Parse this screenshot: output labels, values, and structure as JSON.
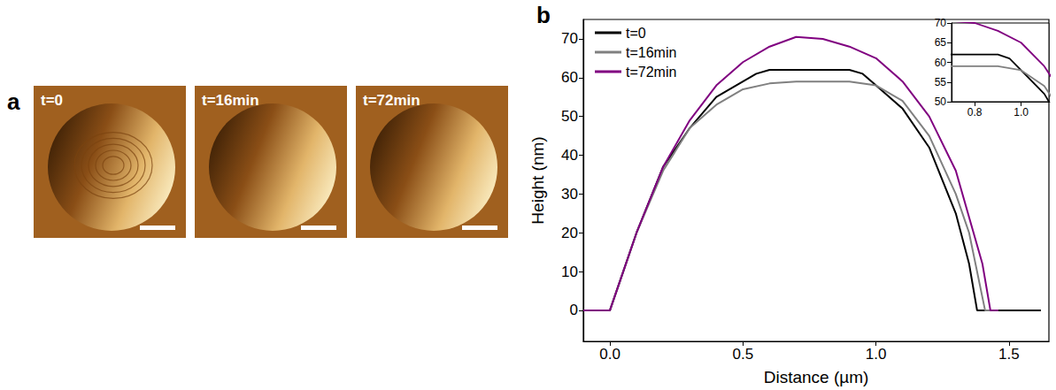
{
  "panel_a": {
    "letter": "a",
    "images": [
      {
        "label": "t=0"
      },
      {
        "label": "t=16min"
      },
      {
        "label": "t=72min"
      }
    ]
  },
  "chart_data": {
    "letter": "b",
    "type": "line",
    "x_label": "Distance (µm)",
    "y_label": "Height (nm)",
    "xlim": [
      -0.1,
      1.65
    ],
    "xticks": [
      {
        "value": 0,
        "label": "0.0"
      },
      {
        "value": 0.5,
        "label": "0.5"
      },
      {
        "value": 1,
        "label": "1.0"
      },
      {
        "value": 1.5,
        "label": "1.5"
      }
    ],
    "ylim": [
      -8,
      75
    ],
    "yticks": [
      0,
      10,
      20,
      30,
      40,
      50,
      60,
      70
    ],
    "grid": false,
    "legend": "upper left",
    "series": [
      {
        "name": "t=0",
        "color": "#000000",
        "x": [
          -0.1,
          0.0,
          0.05,
          0.1,
          0.2,
          0.3,
          0.4,
          0.5,
          0.55,
          0.6,
          0.7,
          0.8,
          0.9,
          0.95,
          1.0,
          1.1,
          1.2,
          1.3,
          1.35,
          1.38,
          1.5,
          1.62
        ],
        "values": [
          0,
          0,
          10,
          20,
          37,
          47,
          55,
          59,
          61,
          62,
          62,
          62,
          62,
          61,
          58,
          52,
          42,
          25,
          12,
          0,
          0,
          0
        ]
      },
      {
        "name": "t=16min",
        "color": "#808080",
        "x": [
          -0.1,
          0.0,
          0.05,
          0.1,
          0.2,
          0.3,
          0.4,
          0.5,
          0.6,
          0.7,
          0.8,
          0.9,
          1.0,
          1.1,
          1.2,
          1.3,
          1.35,
          1.41,
          1.45
        ],
        "values": [
          0,
          0,
          10,
          20,
          36,
          47,
          53,
          57,
          58.5,
          59,
          59,
          59,
          58,
          54,
          45,
          30,
          20,
          0,
          0
        ]
      },
      {
        "name": "t=72min",
        "color": "#800080",
        "x": [
          -0.1,
          0.0,
          0.05,
          0.1,
          0.2,
          0.3,
          0.4,
          0.5,
          0.6,
          0.7,
          0.8,
          0.9,
          1.0,
          1.1,
          1.2,
          1.3,
          1.4,
          1.43,
          1.46
        ],
        "values": [
          0,
          0,
          10,
          20,
          37,
          49,
          58,
          64,
          68,
          70.5,
          70,
          68,
          65,
          59,
          50,
          36,
          12,
          0,
          0
        ]
      }
    ],
    "inset": {
      "xlim": [
        0.7,
        1.12
      ],
      "xticks": [
        {
          "value": 0.8,
          "label": "0.8"
        },
        {
          "value": 1,
          "label": "1.0"
        }
      ],
      "ylim": [
        50,
        70
      ],
      "yticks": [
        50,
        55,
        60,
        65,
        70
      ]
    }
  }
}
